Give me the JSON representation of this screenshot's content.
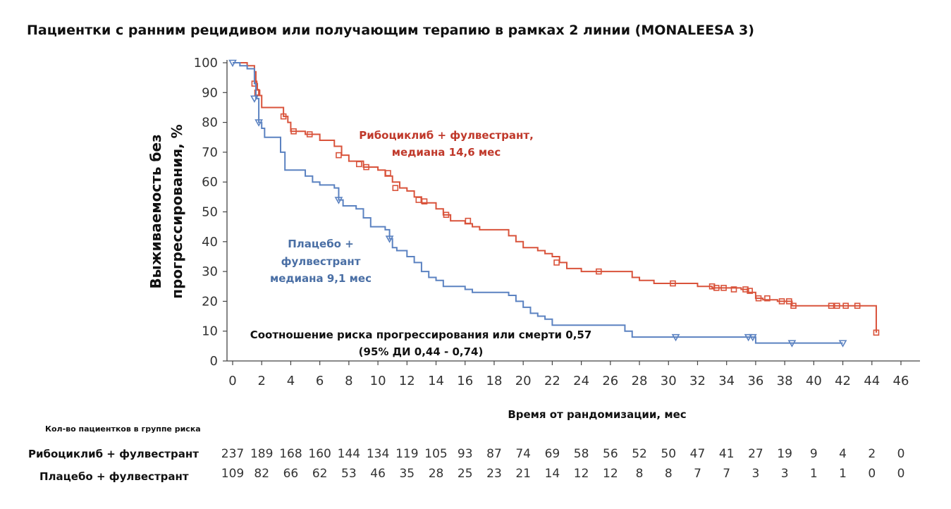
{
  "chart_data": {
    "type": "line",
    "title": "Пациентки с ранним рецидивом или получающим терапию в рамках 2 линии  (MONALEESA 3)",
    "ylabel_line1": "Выживаемость без",
    "ylabel_line2": "прогрессирования, %",
    "xlabel": "Время от рандомизации, мес",
    "x_ticks": [
      0,
      2,
      4,
      6,
      8,
      10,
      12,
      14,
      16,
      18,
      20,
      22,
      24,
      26,
      28,
      30,
      32,
      34,
      36,
      38,
      40,
      42,
      44,
      46
    ],
    "y_ticks": [
      0,
      10,
      20,
      30,
      40,
      50,
      60,
      70,
      80,
      90,
      100
    ],
    "xlim": [
      0,
      46
    ],
    "ylim": [
      0,
      100
    ],
    "series": [
      {
        "name": "Рибоциклиб + фулвестрант",
        "color": "#d9533b",
        "marker": "square",
        "annotation_line1": "Рибоциклиб + фулвестрант,",
        "annotation_line2": "медиана 14,6 мес",
        "steps": [
          [
            0,
            100
          ],
          [
            1,
            99
          ],
          [
            1.5,
            97
          ],
          [
            1.6,
            93
          ],
          [
            1.7,
            91
          ],
          [
            1.8,
            89
          ],
          [
            2,
            85
          ],
          [
            3.5,
            82
          ],
          [
            3.8,
            80
          ],
          [
            4,
            77
          ],
          [
            5,
            76
          ],
          [
            6,
            74
          ],
          [
            7,
            72
          ],
          [
            7.5,
            69
          ],
          [
            8,
            67
          ],
          [
            9,
            65
          ],
          [
            10,
            64
          ],
          [
            10.5,
            62
          ],
          [
            11,
            60
          ],
          [
            11.5,
            58
          ],
          [
            12,
            57
          ],
          [
            12.5,
            55
          ],
          [
            13,
            53
          ],
          [
            14,
            51
          ],
          [
            14.5,
            49
          ],
          [
            15,
            47
          ],
          [
            16,
            46
          ],
          [
            16.5,
            45
          ],
          [
            17,
            44
          ],
          [
            19,
            42
          ],
          [
            19.5,
            40
          ],
          [
            20,
            38
          ],
          [
            21,
            37
          ],
          [
            21.5,
            36
          ],
          [
            22,
            35
          ],
          [
            22.5,
            33
          ],
          [
            23,
            31
          ],
          [
            24,
            30
          ],
          [
            27,
            30
          ],
          [
            27.5,
            28
          ],
          [
            28,
            27
          ],
          [
            29,
            26
          ],
          [
            31,
            26
          ],
          [
            32,
            25
          ],
          [
            33,
            24.5
          ],
          [
            35,
            24
          ],
          [
            35.5,
            23
          ],
          [
            36,
            21
          ],
          [
            36.5,
            20.5
          ],
          [
            37.5,
            20
          ],
          [
            38.5,
            18.5
          ],
          [
            44,
            18.5
          ],
          [
            44.3,
            9.5
          ]
        ],
        "censors": [
          [
            1.5,
            93
          ],
          [
            1.7,
            90
          ],
          [
            3.5,
            82
          ],
          [
            4.2,
            77
          ],
          [
            5.3,
            76
          ],
          [
            7.3,
            69
          ],
          [
            8.7,
            66
          ],
          [
            9.2,
            65
          ],
          [
            10.7,
            63
          ],
          [
            11.2,
            58
          ],
          [
            12.8,
            54
          ],
          [
            13.2,
            53.5
          ],
          [
            14.7,
            49
          ],
          [
            16.2,
            47
          ],
          [
            22.3,
            33
          ],
          [
            25.2,
            30
          ],
          [
            30.3,
            26
          ],
          [
            33,
            25
          ],
          [
            33.3,
            24.5
          ],
          [
            33.8,
            24.5
          ],
          [
            34.5,
            24
          ],
          [
            35.3,
            24
          ],
          [
            35.6,
            23.5
          ],
          [
            36.2,
            21
          ],
          [
            36.8,
            21
          ],
          [
            37.8,
            20
          ],
          [
            38.3,
            20
          ],
          [
            38.6,
            18.5
          ],
          [
            41.2,
            18.5
          ],
          [
            41.6,
            18.5
          ],
          [
            42.2,
            18.5
          ],
          [
            43,
            18.5
          ],
          [
            44.3,
            9.5
          ]
        ]
      },
      {
        "name": "Плацебо + фулвестрант",
        "color": "#5b82c1",
        "marker": "triangle",
        "annotation_line1": "Плацебо +",
        "annotation_line2": "фулвестрант",
        "annotation_line3": "медиана 9,1 мес",
        "steps": [
          [
            0,
            100
          ],
          [
            0.5,
            99
          ],
          [
            1,
            98
          ],
          [
            1.5,
            93
          ],
          [
            1.6,
            88
          ],
          [
            1.8,
            80
          ],
          [
            2,
            78
          ],
          [
            2.2,
            75
          ],
          [
            3,
            75
          ],
          [
            3.3,
            70
          ],
          [
            3.6,
            64
          ],
          [
            5,
            62
          ],
          [
            5.5,
            60
          ],
          [
            6,
            59
          ],
          [
            7,
            58
          ],
          [
            7.3,
            54
          ],
          [
            7.6,
            52
          ],
          [
            8.5,
            51
          ],
          [
            9,
            48
          ],
          [
            9.5,
            45
          ],
          [
            10.5,
            44
          ],
          [
            10.8,
            41
          ],
          [
            11,
            38
          ],
          [
            11.3,
            37
          ],
          [
            12,
            35
          ],
          [
            12.5,
            33
          ],
          [
            13,
            30
          ],
          [
            13.5,
            28
          ],
          [
            14,
            27
          ],
          [
            14.5,
            25
          ],
          [
            16,
            24
          ],
          [
            16.5,
            23
          ],
          [
            19,
            22
          ],
          [
            19.5,
            20
          ],
          [
            20,
            18
          ],
          [
            20.5,
            16
          ],
          [
            21,
            15
          ],
          [
            21.5,
            14
          ],
          [
            22,
            12
          ],
          [
            23,
            12
          ],
          [
            25,
            12
          ],
          [
            27,
            10
          ],
          [
            27.5,
            8
          ],
          [
            35.5,
            8
          ],
          [
            36,
            6
          ],
          [
            42,
            6
          ]
        ],
        "censors": [
          [
            0,
            100
          ],
          [
            1.8,
            80
          ],
          [
            1.5,
            88
          ],
          [
            7.3,
            54
          ],
          [
            10.8,
            41
          ],
          [
            30.5,
            8
          ],
          [
            35.5,
            8
          ],
          [
            35.8,
            8
          ],
          [
            38.5,
            6
          ],
          [
            42,
            6
          ]
        ]
      }
    ],
    "hazard_ratio_line1": "Соотношение риска прогрессирования или смерти 0,57",
    "hazard_ratio_line2": "(95% ДИ 0,44 - 0,74)"
  },
  "risk_table": {
    "header": "Кол-во пациентков в группе риска",
    "rows": [
      {
        "label": "Рибоциклиб + фулвестрант",
        "values": [
          "237",
          "189",
          "168",
          "160",
          "144",
          "134",
          "119",
          "105",
          "93",
          "87",
          "74",
          "69",
          "58",
          "56",
          "52",
          "50",
          "47",
          "41",
          "27",
          "19",
          "9",
          "4",
          "2",
          "0"
        ]
      },
      {
        "label": "Плацебо + фулвестрант",
        "values": [
          "109",
          "82",
          "66",
          "62",
          "53",
          "46",
          "35",
          "28",
          "25",
          "23",
          "21",
          "14",
          "12",
          "12",
          "8",
          "8",
          "7",
          "7",
          "3",
          "3",
          "1",
          "1",
          "0",
          "0"
        ]
      }
    ]
  }
}
